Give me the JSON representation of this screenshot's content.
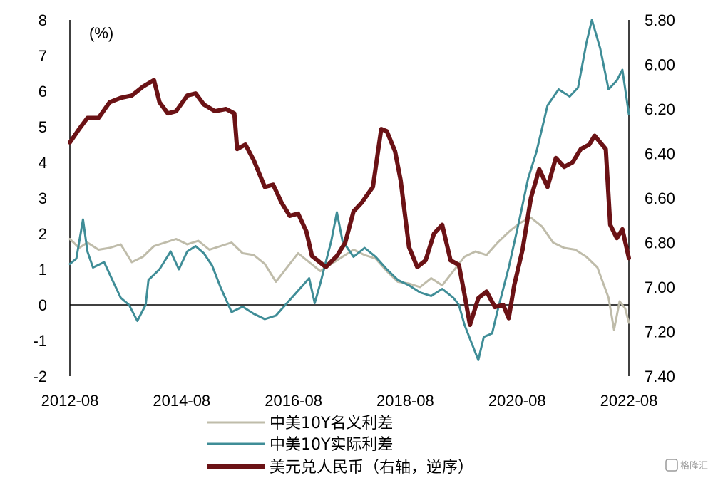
{
  "chart_data": {
    "type": "line",
    "unit_label": "(%)",
    "x_tick_labels": [
      "2012-08",
      "2014-08",
      "2016-08",
      "2018-08",
      "2020-08",
      "2022-08"
    ],
    "x_range": [
      2012.583,
      2022.667
    ],
    "y_left": {
      "range": [
        -2,
        8
      ],
      "ticks": [
        "-2",
        "-1",
        "0",
        "1",
        "2",
        "3",
        "4",
        "5",
        "6",
        "7",
        "8"
      ]
    },
    "y_right": {
      "range": [
        5.8,
        7.4
      ],
      "inverted": true,
      "ticks": [
        "5.80",
        "6.00",
        "6.20",
        "6.40",
        "6.60",
        "6.80",
        "7.00",
        "7.20",
        "7.40"
      ]
    },
    "zero_line": true,
    "legend_position": "bottom",
    "series": [
      {
        "name": "中美10Y名义利差",
        "axis": "left",
        "color": "#bfbcaa",
        "width": 3,
        "points": [
          [
            2012.583,
            1.85
          ],
          [
            2012.75,
            1.6
          ],
          [
            2012.9,
            1.75
          ],
          [
            2013.1,
            1.55
          ],
          [
            2013.3,
            1.6
          ],
          [
            2013.5,
            1.7
          ],
          [
            2013.7,
            1.2
          ],
          [
            2013.9,
            1.35
          ],
          [
            2014.1,
            1.65
          ],
          [
            2014.3,
            1.75
          ],
          [
            2014.5,
            1.85
          ],
          [
            2014.7,
            1.7
          ],
          [
            2014.9,
            1.8
          ],
          [
            2015.1,
            1.55
          ],
          [
            2015.3,
            1.65
          ],
          [
            2015.5,
            1.75
          ],
          [
            2015.7,
            1.45
          ],
          [
            2015.9,
            1.4
          ],
          [
            2016.1,
            1.15
          ],
          [
            2016.3,
            0.65
          ],
          [
            2016.5,
            1.05
          ],
          [
            2016.7,
            1.45
          ],
          [
            2016.9,
            1.2
          ],
          [
            2017.1,
            0.95
          ],
          [
            2017.3,
            1.15
          ],
          [
            2017.5,
            1.35
          ],
          [
            2017.7,
            1.55
          ],
          [
            2017.9,
            1.4
          ],
          [
            2018.1,
            1.3
          ],
          [
            2018.3,
            0.95
          ],
          [
            2018.5,
            0.65
          ],
          [
            2018.7,
            0.6
          ],
          [
            2018.9,
            0.5
          ],
          [
            2019.1,
            0.75
          ],
          [
            2019.3,
            0.55
          ],
          [
            2019.5,
            0.95
          ],
          [
            2019.7,
            1.35
          ],
          [
            2019.9,
            1.5
          ],
          [
            2020.1,
            1.4
          ],
          [
            2020.3,
            1.75
          ],
          [
            2020.5,
            2.05
          ],
          [
            2020.7,
            2.3
          ],
          [
            2020.9,
            2.45
          ],
          [
            2021.1,
            2.2
          ],
          [
            2021.3,
            1.75
          ],
          [
            2021.5,
            1.6
          ],
          [
            2021.7,
            1.55
          ],
          [
            2021.9,
            1.35
          ],
          [
            2022.1,
            1.05
          ],
          [
            2022.3,
            0.2
          ],
          [
            2022.4,
            -0.7
          ],
          [
            2022.5,
            0.1
          ],
          [
            2022.6,
            -0.1
          ],
          [
            2022.667,
            -0.5
          ]
        ]
      },
      {
        "name": "中美10Y实际利差",
        "axis": "left",
        "color": "#3f8d97",
        "width": 3,
        "points": [
          [
            2012.583,
            1.15
          ],
          [
            2012.7,
            1.3
          ],
          [
            2012.82,
            2.4
          ],
          [
            2012.9,
            1.5
          ],
          [
            2013.0,
            1.05
          ],
          [
            2013.2,
            1.2
          ],
          [
            2013.35,
            0.7
          ],
          [
            2013.5,
            0.2
          ],
          [
            2013.65,
            0.0
          ],
          [
            2013.8,
            -0.45
          ],
          [
            2013.95,
            0.0
          ],
          [
            2014.0,
            0.7
          ],
          [
            2014.2,
            1.0
          ],
          [
            2014.4,
            1.5
          ],
          [
            2014.55,
            1.0
          ],
          [
            2014.7,
            1.5
          ],
          [
            2014.85,
            1.65
          ],
          [
            2015.0,
            1.45
          ],
          [
            2015.15,
            1.1
          ],
          [
            2015.3,
            0.5
          ],
          [
            2015.5,
            -0.2
          ],
          [
            2015.7,
            -0.05
          ],
          [
            2015.9,
            -0.25
          ],
          [
            2016.1,
            -0.4
          ],
          [
            2016.3,
            -0.3
          ],
          [
            2016.5,
            0.05
          ],
          [
            2016.7,
            0.4
          ],
          [
            2016.9,
            0.75
          ],
          [
            2017.0,
            0.05
          ],
          [
            2017.1,
            0.6
          ],
          [
            2017.3,
            1.8
          ],
          [
            2017.4,
            2.6
          ],
          [
            2017.5,
            1.8
          ],
          [
            2017.7,
            1.35
          ],
          [
            2017.9,
            1.6
          ],
          [
            2018.1,
            1.35
          ],
          [
            2018.3,
            1.0
          ],
          [
            2018.5,
            0.7
          ],
          [
            2018.7,
            0.55
          ],
          [
            2018.9,
            0.35
          ],
          [
            2019.1,
            0.25
          ],
          [
            2019.3,
            0.45
          ],
          [
            2019.5,
            0.2
          ],
          [
            2019.6,
            0.0
          ],
          [
            2019.7,
            -0.55
          ],
          [
            2019.85,
            -1.15
          ],
          [
            2019.95,
            -1.55
          ],
          [
            2020.05,
            -0.9
          ],
          [
            2020.2,
            -0.8
          ],
          [
            2020.3,
            -0.15
          ],
          [
            2020.5,
            1.05
          ],
          [
            2020.7,
            2.45
          ],
          [
            2020.85,
            3.55
          ],
          [
            2021.0,
            4.3
          ],
          [
            2021.2,
            5.6
          ],
          [
            2021.4,
            6.05
          ],
          [
            2021.6,
            5.85
          ],
          [
            2021.75,
            6.1
          ],
          [
            2021.9,
            7.35
          ],
          [
            2022.0,
            8.0
          ],
          [
            2022.15,
            7.2
          ],
          [
            2022.3,
            6.05
          ],
          [
            2022.45,
            6.3
          ],
          [
            2022.55,
            6.6
          ],
          [
            2022.667,
            5.35
          ]
        ]
      },
      {
        "name": "美元兑人民币（右轴，逆序）",
        "axis": "right",
        "color": "#6b1215",
        "width": 6,
        "points": [
          [
            2012.583,
            6.35
          ],
          [
            2012.75,
            6.29
          ],
          [
            2012.9,
            6.24
          ],
          [
            2013.1,
            6.24
          ],
          [
            2013.3,
            6.17
          ],
          [
            2013.5,
            6.15
          ],
          [
            2013.7,
            6.14
          ],
          [
            2013.9,
            6.1
          ],
          [
            2014.1,
            6.07
          ],
          [
            2014.2,
            6.17
          ],
          [
            2014.35,
            6.22
          ],
          [
            2014.5,
            6.21
          ],
          [
            2014.7,
            6.14
          ],
          [
            2014.85,
            6.13
          ],
          [
            2015.0,
            6.18
          ],
          [
            2015.2,
            6.21
          ],
          [
            2015.4,
            6.2
          ],
          [
            2015.55,
            6.22
          ],
          [
            2015.6,
            6.38
          ],
          [
            2015.75,
            6.36
          ],
          [
            2015.9,
            6.43
          ],
          [
            2016.1,
            6.55
          ],
          [
            2016.25,
            6.54
          ],
          [
            2016.4,
            6.62
          ],
          [
            2016.55,
            6.68
          ],
          [
            2016.7,
            6.67
          ],
          [
            2016.85,
            6.75
          ],
          [
            2016.95,
            6.86
          ],
          [
            2017.05,
            6.88
          ],
          [
            2017.2,
            6.91
          ],
          [
            2017.4,
            6.86
          ],
          [
            2017.55,
            6.8
          ],
          [
            2017.7,
            6.66
          ],
          [
            2017.85,
            6.62
          ],
          [
            2018.05,
            6.55
          ],
          [
            2018.2,
            6.29
          ],
          [
            2018.3,
            6.3
          ],
          [
            2018.45,
            6.39
          ],
          [
            2018.55,
            6.52
          ],
          [
            2018.7,
            6.82
          ],
          [
            2018.85,
            6.91
          ],
          [
            2019.0,
            6.88
          ],
          [
            2019.15,
            6.76
          ],
          [
            2019.3,
            6.72
          ],
          [
            2019.45,
            6.88
          ],
          [
            2019.6,
            6.9
          ],
          [
            2019.7,
            7.03
          ],
          [
            2019.8,
            7.17
          ],
          [
            2019.95,
            7.05
          ],
          [
            2020.1,
            7.02
          ],
          [
            2020.25,
            7.09
          ],
          [
            2020.4,
            7.08
          ],
          [
            2020.5,
            7.14
          ],
          [
            2020.6,
            6.99
          ],
          [
            2020.75,
            6.83
          ],
          [
            2020.9,
            6.6
          ],
          [
            2021.05,
            6.47
          ],
          [
            2021.2,
            6.55
          ],
          [
            2021.35,
            6.42
          ],
          [
            2021.5,
            6.46
          ],
          [
            2021.65,
            6.44
          ],
          [
            2021.8,
            6.38
          ],
          [
            2021.95,
            6.36
          ],
          [
            2022.05,
            6.32
          ],
          [
            2022.15,
            6.35
          ],
          [
            2022.25,
            6.38
          ],
          [
            2022.33,
            6.72
          ],
          [
            2022.45,
            6.78
          ],
          [
            2022.55,
            6.74
          ],
          [
            2022.667,
            6.87
          ]
        ]
      }
    ]
  },
  "watermark": "格隆汇"
}
